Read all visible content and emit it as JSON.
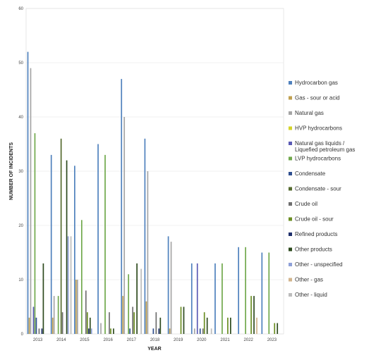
{
  "chart_data": {
    "type": "bar",
    "title": "",
    "xlabel": "YEAR",
    "ylabel": "NUMBER OF INCIDENTS",
    "ylim": [
      0,
      60
    ],
    "yticks": [
      0,
      10,
      20,
      30,
      40,
      50,
      60
    ],
    "grid": true,
    "legend_position": "right",
    "categories": [
      "2013",
      "2014",
      "2015",
      "2016",
      "2017",
      "2018",
      "2019",
      "2020",
      "2021",
      "2022",
      "2023"
    ],
    "series": [
      {
        "name": "Hydrocarbon gas",
        "color": "#4f81bd",
        "values": [
          52,
          33,
          31,
          35,
          47,
          36,
          18,
          13,
          13,
          16,
          15
        ]
      },
      {
        "name": "Gas - sour or acid",
        "color": "#c0a050",
        "values": [
          3,
          3,
          10,
          0,
          7,
          6,
          1,
          0,
          0,
          0,
          0
        ]
      },
      {
        "name": "Natural gas",
        "color": "#a5a5a5",
        "values": [
          49,
          7,
          10,
          2,
          40,
          30,
          17,
          1,
          0,
          0,
          0
        ]
      },
      {
        "name": "HVP hydrocarbons",
        "color": "#d4d42a",
        "values": [
          0,
          0,
          0,
          0,
          0,
          0,
          0,
          0,
          0,
          0,
          0
        ]
      },
      {
        "name": "Natural gas liquids / Liquefied petroleum gas",
        "color": "#5a5ab4",
        "values": [
          5,
          0,
          0,
          0,
          0,
          0,
          0,
          13,
          0,
          0,
          0
        ]
      },
      {
        "name": "LVP hydrocarbons",
        "color": "#70a84c",
        "values": [
          37,
          7,
          21,
          33,
          11,
          0,
          0,
          0,
          13,
          16,
          15
        ]
      },
      {
        "name": "Condensate",
        "color": "#2f4f8f",
        "values": [
          3,
          0,
          0,
          0,
          1,
          1,
          0,
          1,
          0,
          0,
          0
        ]
      },
      {
        "name": "Condensate - sour",
        "color": "#556b2f",
        "values": [
          0,
          36,
          0,
          0,
          0,
          0,
          0,
          0,
          0,
          0,
          0
        ]
      },
      {
        "name": "Crude oil",
        "color": "#6e6e6e",
        "values": [
          1,
          4,
          8,
          4,
          5,
          4,
          0,
          1,
          0,
          0,
          0
        ]
      },
      {
        "name": "Crude oil - sour",
        "color": "#6b8e23",
        "values": [
          0,
          0,
          4,
          1,
          4,
          0,
          5,
          4,
          3,
          7,
          2
        ]
      },
      {
        "name": "Refined products",
        "color": "#1f2f6b",
        "values": [
          1,
          0,
          1,
          0,
          0,
          1,
          0,
          0,
          0,
          0,
          0
        ]
      },
      {
        "name": "Other products",
        "color": "#2d4a1e",
        "values": [
          13,
          32,
          3,
          1,
          13,
          3,
          5,
          3,
          3,
          7,
          2
        ]
      },
      {
        "name": "Other - unspecified",
        "color": "#8ea0d8",
        "values": [
          0,
          18,
          1,
          0,
          0,
          0,
          0,
          0,
          0,
          0,
          0
        ]
      },
      {
        "name": "Other - gas",
        "color": "#d2b48c",
        "values": [
          0,
          0,
          0,
          0,
          0,
          0,
          0,
          0,
          0,
          3,
          0
        ]
      },
      {
        "name": "Other - liquid",
        "color": "#bcbcbc",
        "values": [
          0,
          18,
          0,
          0,
          12,
          0,
          0,
          1,
          0,
          0,
          0
        ]
      }
    ]
  }
}
